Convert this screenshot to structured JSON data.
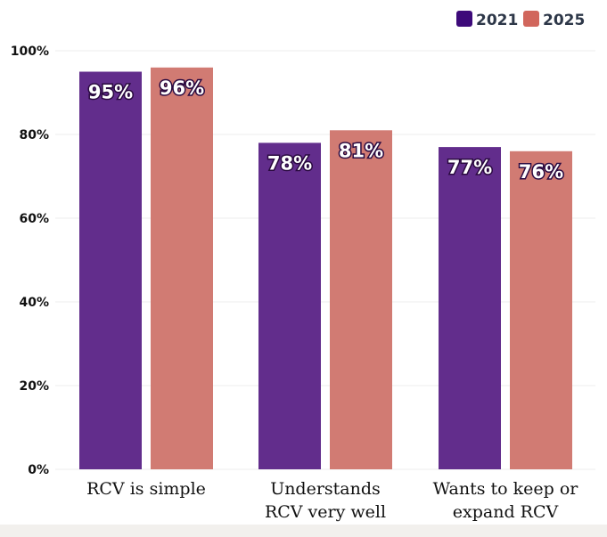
{
  "chart_data": {
    "type": "bar",
    "categories": [
      [
        "RCV is simple"
      ],
      [
        "Understands",
        "RCV very well"
      ],
      [
        "Wants to keep or",
        "expand RCV"
      ]
    ],
    "series": [
      {
        "name": "2021",
        "values": [
          95,
          78,
          77
        ],
        "color": "#622d8c",
        "legend_color": "#3d0a7a"
      },
      {
        "name": "2025",
        "values": [
          96,
          81,
          76
        ],
        "color": "#d17b73",
        "legend_color": "#d1665c"
      }
    ],
    "data_label_format": "{v}%",
    "y_ticks": [
      "0%",
      "20%",
      "40%",
      "60%",
      "80%",
      "100%"
    ],
    "ylim": [
      0,
      100
    ],
    "grid": true,
    "legend_placement": "top-right"
  }
}
